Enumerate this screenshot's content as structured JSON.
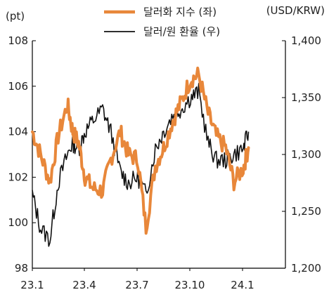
{
  "chart_data": {
    "type": "line",
    "left_unit": "(pt)",
    "right_unit": "(USD/KRW)",
    "x_ticks": [
      "23.1",
      "23.4",
      "23.7",
      "23.10",
      "24.1"
    ],
    "y_left": {
      "min": 98,
      "max": 108,
      "ticks": [
        "98",
        "100",
        "102",
        "104",
        "106",
        "108"
      ]
    },
    "y_right": {
      "min": 1200,
      "max": 1400,
      "ticks": [
        "1,200",
        "1,250",
        "1,300",
        "1,350",
        "1,400"
      ]
    },
    "series": [
      {
        "name": "달러화 지수 (좌)",
        "axis": "left",
        "color": "#E8873A",
        "values": [
          [
            "23.1",
            104.0
          ],
          [
            "23.1.15",
            103.0
          ],
          [
            "23.2",
            101.8
          ],
          [
            "23.2.15",
            103.8
          ],
          [
            "23.3",
            105.2
          ],
          [
            "23.3.10",
            104.0
          ],
          [
            "23.3.20",
            103.5
          ],
          [
            "23.4",
            102.0
          ],
          [
            "23.4.15",
            101.5
          ],
          [
            "23.5",
            101.4
          ],
          [
            "23.5.15",
            102.8
          ],
          [
            "23.6",
            104.0
          ],
          [
            "23.6.15",
            103.0
          ],
          [
            "23.7",
            102.8
          ],
          [
            "23.7.15",
            99.8
          ],
          [
            "23.8",
            102.5
          ],
          [
            "23.8.15",
            103.3
          ],
          [
            "23.9",
            104.5
          ],
          [
            "23.9.15",
            105.3
          ],
          [
            "23.10",
            106.3
          ],
          [
            "23.10.15",
            106.5
          ],
          [
            "23.11",
            104.8
          ],
          [
            "23.11.15",
            103.8
          ],
          [
            "23.12",
            103.3
          ],
          [
            "23.12.15",
            101.8
          ],
          [
            "24.1",
            102.4
          ],
          [
            "24.1.10",
            103.3
          ]
        ]
      },
      {
        "name": "달러/원 환율 (우)",
        "axis": "right",
        "color": "#111111",
        "values": [
          [
            "23.1",
            1265
          ],
          [
            "23.1.15",
            1235
          ],
          [
            "23.2",
            1225
          ],
          [
            "23.2.15",
            1275
          ],
          [
            "23.3",
            1300
          ],
          [
            "23.3.10",
            1310
          ],
          [
            "23.3.20",
            1305
          ],
          [
            "23.4",
            1320
          ],
          [
            "23.4.15",
            1330
          ],
          [
            "23.5",
            1340
          ],
          [
            "23.5.15",
            1320
          ],
          [
            "23.6",
            1285
          ],
          [
            "23.6.15",
            1275
          ],
          [
            "23.7",
            1280
          ],
          [
            "23.7.15",
            1265
          ],
          [
            "23.8",
            1305
          ],
          [
            "23.8.15",
            1320
          ],
          [
            "23.9",
            1335
          ],
          [
            "23.9.15",
            1340
          ],
          [
            "23.10",
            1350
          ],
          [
            "23.10.15",
            1355
          ],
          [
            "23.11",
            1310
          ],
          [
            "23.11.15",
            1295
          ],
          [
            "23.12",
            1295
          ],
          [
            "23.12.15",
            1300
          ],
          [
            "24.1",
            1305
          ],
          [
            "24.1.10",
            1320
          ]
        ]
      }
    ]
  }
}
